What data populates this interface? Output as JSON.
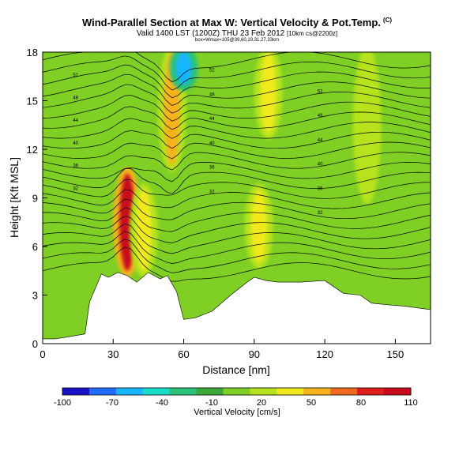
{
  "chart_data": {
    "type": "heatmap",
    "title": "Wind-Parallel Section at Max W: Vertical Velocity & Pot.Temp.",
    "title_mark": "(C)",
    "subtitle": "Valid 1400 LST (1200Z) THU 23 Feb 2012",
    "subtitle_run": "[10km cs@2200z]",
    "info_line": "box=Wmax=105@39,60,19,31,27,33km",
    "xlabel": "Distance [nm]",
    "ylabel": "Height [Kft MSL]",
    "xlim": [
      0,
      165
    ],
    "ylim": [
      0,
      18
    ],
    "x_ticks": [
      0,
      30,
      60,
      90,
      120,
      150
    ],
    "y_ticks": [
      0,
      3,
      6,
      9,
      12,
      15,
      18
    ],
    "colorbar": {
      "label": "Vertical Velocity [cm/s]",
      "ticks": [
        -100,
        -70,
        -40,
        -10,
        20,
        50,
        80,
        110
      ],
      "range": [
        -100,
        110
      ],
      "colors": [
        "#1a10c8",
        "#1f6dff",
        "#18b6ff",
        "#18dcc8",
        "#2bc27a",
        "#3aa83a",
        "#7fcf24",
        "#b6e31e",
        "#f0ea1e",
        "#f7b21e",
        "#f06a1e",
        "#e01c1c",
        "#c80a1a"
      ]
    },
    "terrain_profile": {
      "distance_nm": [
        0,
        5,
        10,
        18,
        20,
        25,
        28,
        32,
        36,
        40,
        45,
        50,
        53,
        57,
        60,
        65,
        72,
        80,
        87,
        90,
        95,
        100,
        110,
        120,
        128,
        135,
        140,
        147,
        155,
        160,
        165
      ],
      "height_kft": [
        0.3,
        0.3,
        0.4,
        0.6,
        2.6,
        4.3,
        4.1,
        4.4,
        4.2,
        3.8,
        4.4,
        4.0,
        4.2,
        3.2,
        1.5,
        1.6,
        2.0,
        3.0,
        3.8,
        4.1,
        3.9,
        3.8,
        3.8,
        3.9,
        3.1,
        3.0,
        2.5,
        2.4,
        2.3,
        2.2,
        2.1
      ]
    },
    "velocity_plumes": [
      {
        "x_nm": 36,
        "zmin_kft": 4.5,
        "zmax_kft": 10.5,
        "value_cm_s": 105
      },
      {
        "x_nm": 43,
        "zmin_kft": 4.5,
        "zmax_kft": 9.5,
        "value_cm_s": 45
      },
      {
        "x_nm": 55,
        "zmin_kft": 11,
        "zmax_kft": 18,
        "value_cm_s": 50
      },
      {
        "x_nm": 60,
        "zmin_kft": 16,
        "zmax_kft": 18,
        "value_cm_s": -60
      },
      {
        "x_nm": 92,
        "zmin_kft": 5,
        "zmax_kft": 9.5,
        "value_cm_s": 35
      },
      {
        "x_nm": 96,
        "zmin_kft": 13,
        "zmax_kft": 18,
        "value_cm_s": 45
      },
      {
        "x_nm": 138,
        "zmin_kft": 9,
        "zmax_kft": 18,
        "value_cm_s": 25
      }
    ],
    "isentrope_labels": [
      "52",
      "48",
      "44",
      "40",
      "36",
      "32"
    ],
    "grid": false,
    "legend": "bottom"
  }
}
